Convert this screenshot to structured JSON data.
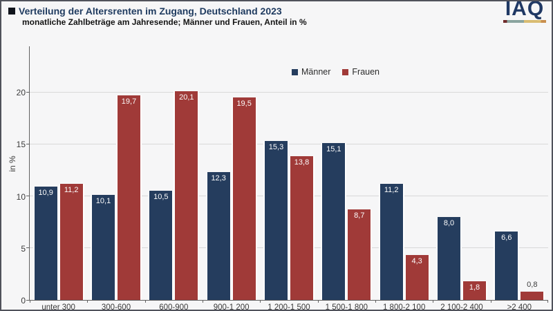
{
  "logo": {
    "text": "IAQ"
  },
  "chart_data": {
    "type": "bar",
    "title": "Verteilung der Altersrenten im Zugang, Deutschland 2023",
    "subtitle": "monatliche Zahlbeträge am Jahresende; Männer und Frauen, Anteil in %",
    "categories": [
      "unter 300",
      "300-600",
      "600-900",
      "900-1 200",
      "1 200-1 500",
      "1 500-1 800",
      "1 800-2 100",
      "2 100-2 400",
      ">2 400"
    ],
    "series": [
      {
        "name": "Männer",
        "color": "#253d5e",
        "values": [
          10.9,
          10.1,
          10.5,
          12.3,
          15.3,
          15.1,
          11.2,
          8.0,
          6.6
        ],
        "labels": [
          "10,9",
          "10,1",
          "10,5",
          "12,3",
          "15,3",
          "15,1",
          "11,2",
          "8,0",
          "6,6"
        ]
      },
      {
        "name": "Frauen",
        "color": "#a03a38",
        "values": [
          11.2,
          19.7,
          20.1,
          19.5,
          13.8,
          8.7,
          4.3,
          1.8,
          0.8
        ],
        "labels": [
          "11,2",
          "19,7",
          "20,1",
          "19,5",
          "13,8",
          "8,7",
          "4,3",
          "1,8",
          "0,8"
        ]
      }
    ],
    "xlabel": "",
    "ylabel": "in %",
    "y_ticks": [
      0,
      5,
      10,
      15,
      20
    ],
    "ylim": [
      0,
      24.4
    ],
    "grid": true,
    "legend_position": "top-center-inside",
    "value_label_decimal": "comma"
  }
}
